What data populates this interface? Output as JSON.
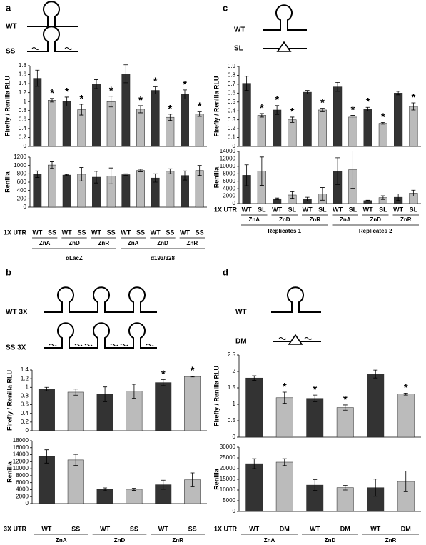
{
  "panels": [
    {
      "label": "a",
      "constructs": [
        "WT",
        "SS"
      ],
      "x_title": "1X UTR",
      "categories": [
        "WT",
        "SS",
        "WT",
        "SS",
        "WT",
        "SS",
        "WT",
        "SS",
        "WT",
        "SS",
        "WT",
        "SS"
      ],
      "groups": [
        "ZnA",
        "ZnD",
        "ZnR",
        "ZnA",
        "ZnD",
        "ZnR"
      ],
      "supergroups": [
        "αLacZ",
        "α193/328"
      ]
    },
    {
      "label": "b",
      "constructs": [
        "WT 3X",
        "SS 3X"
      ],
      "x_title": "3X UTR",
      "categories": [
        "WT",
        "SS",
        "WT",
        "SS",
        "WT",
        "SS"
      ],
      "groups": [
        "ZnA",
        "ZnD",
        "ZnR"
      ]
    },
    {
      "label": "c",
      "constructs": [
        "WT",
        "SL"
      ],
      "x_title": "1X UTR",
      "categories": [
        "WT",
        "SL",
        "WT",
        "SL",
        "WT",
        "SL",
        "WT",
        "SL",
        "WT",
        "SL",
        "WT",
        "SL"
      ],
      "groups": [
        "ZnA",
        "ZnD",
        "ZnR",
        "ZnA",
        "ZnD",
        "ZnR"
      ],
      "supergroups": [
        "Replicates 1",
        "Replicates 2"
      ]
    },
    {
      "label": "d",
      "constructs": [
        "WT",
        "DM"
      ],
      "x_title": "1X UTR",
      "categories": [
        "WT",
        "DM",
        "WT",
        "DM",
        "WT",
        "DM"
      ],
      "groups": [
        "ZnA",
        "ZnD",
        "ZnR"
      ]
    }
  ],
  "chart_data": [
    {
      "type": "bar",
      "ylabel": "Firefly / Renilla RLU",
      "values": [
        1.52,
        1.03,
        1.0,
        0.82,
        1.39,
        1.0,
        1.62,
        0.83,
        1.25,
        0.65,
        1.16,
        0.72
      ],
      "errors": [
        0.18,
        0.04,
        0.1,
        0.12,
        0.1,
        0.12,
        0.2,
        0.08,
        0.08,
        0.07,
        0.1,
        0.05
      ],
      "significance": [
        null,
        "*",
        "*",
        "*",
        null,
        "*",
        null,
        "*",
        "*",
        "*",
        "*",
        "*"
      ],
      "colors": [
        "#333333",
        "#bbbbbb",
        "#333333",
        "#bbbbbb",
        "#333333",
        "#bbbbbb",
        "#333333",
        "#bbbbbb",
        "#333333",
        "#bbbbbb",
        "#333333",
        "#bbbbbb"
      ],
      "ylim": [
        0,
        1.8
      ],
      "yticks": [
        0,
        0.2,
        0.4,
        0.6,
        0.8,
        1,
        1.2,
        1.4,
        1.6,
        1.8
      ]
    },
    {
      "type": "bar",
      "ylabel": "Renilla",
      "values": [
        790,
        1010,
        770,
        790,
        720,
        750,
        780,
        880,
        700,
        860,
        760,
        880
      ],
      "errors": [
        80,
        80,
        15,
        160,
        140,
        190,
        20,
        30,
        100,
        60,
        110,
        120
      ],
      "colors": [
        "#333333",
        "#bbbbbb",
        "#333333",
        "#bbbbbb",
        "#333333",
        "#bbbbbb",
        "#333333",
        "#bbbbbb",
        "#333333",
        "#bbbbbb",
        "#333333",
        "#bbbbbb"
      ],
      "ylim": [
        0,
        1200
      ],
      "yticks": [
        0,
        200,
        400,
        600,
        800,
        1000,
        1200
      ]
    },
    {
      "type": "bar",
      "ylabel": "Firefly / Renilla RLU",
      "values": [
        0.96,
        0.89,
        0.84,
        0.91,
        1.11,
        1.25
      ],
      "errors": [
        0.04,
        0.07,
        0.17,
        0.16,
        0.07,
        0.01
      ],
      "significance": [
        null,
        null,
        null,
        null,
        "*",
        "*"
      ],
      "colors": [
        "#333333",
        "#bbbbbb",
        "#333333",
        "#bbbbbb",
        "#333333",
        "#bbbbbb"
      ],
      "ylim": [
        0,
        1.4
      ],
      "yticks": [
        0,
        0.2,
        0.4,
        0.6,
        0.8,
        1,
        1.2,
        1.4
      ]
    },
    {
      "type": "bar",
      "ylabel": "Renilla",
      "values": [
        13500,
        12500,
        4100,
        4100,
        5400,
        6800
      ],
      "errors": [
        1900,
        1600,
        400,
        300,
        1300,
        2000
      ],
      "colors": [
        "#333333",
        "#bbbbbb",
        "#333333",
        "#bbbbbb",
        "#333333",
        "#bbbbbb"
      ],
      "ylim": [
        0,
        18000
      ],
      "yticks": [
        0,
        2000,
        4000,
        6000,
        8000,
        10000,
        12000,
        14000,
        16000,
        18000
      ]
    },
    {
      "type": "bar",
      "ylabel": "Firefly / Renilla RLU",
      "values": [
        0.71,
        0.35,
        0.41,
        0.3,
        0.61,
        0.41,
        0.67,
        0.33,
        0.42,
        0.26,
        0.6,
        0.45
      ],
      "errors": [
        0.08,
        0.02,
        0.05,
        0.03,
        0.02,
        0.02,
        0.05,
        0.02,
        0.02,
        0.01,
        0.02,
        0.04
      ],
      "significance": [
        null,
        "*",
        "*",
        "*",
        null,
        "*",
        null,
        "*",
        "*",
        "*",
        null,
        "*"
      ],
      "colors": [
        "#333333",
        "#bbbbbb",
        "#333333",
        "#bbbbbb",
        "#333333",
        "#bbbbbb",
        "#333333",
        "#bbbbbb",
        "#333333",
        "#bbbbbb",
        "#333333",
        "#bbbbbb"
      ],
      "ylim": [
        0,
        0.9
      ],
      "yticks": [
        0,
        0.1,
        0.2,
        0.3,
        0.4,
        0.5,
        0.6,
        0.7,
        0.8,
        0.9
      ]
    },
    {
      "type": "bar",
      "ylabel": "Renilla",
      "values": [
        7600,
        8700,
        1300,
        2300,
        1200,
        2600,
        8700,
        9100,
        800,
        1600,
        1700,
        2800
      ],
      "errors": [
        2800,
        3800,
        200,
        900,
        500,
        1700,
        3600,
        5000,
        100,
        500,
        900,
        800
      ],
      "colors": [
        "#333333",
        "#bbbbbb",
        "#333333",
        "#bbbbbb",
        "#333333",
        "#bbbbbb",
        "#333333",
        "#bbbbbb",
        "#333333",
        "#bbbbbb",
        "#333333",
        "#bbbbbb"
      ],
      "ylim": [
        0,
        14000
      ],
      "yticks": [
        0,
        2000,
        4000,
        6000,
        8000,
        10000,
        12000,
        14000
      ]
    },
    {
      "type": "bar",
      "ylabel": "Firefly / Renilla RLU",
      "values": [
        1.8,
        1.2,
        1.18,
        0.9,
        1.92,
        1.31
      ],
      "errors": [
        0.07,
        0.17,
        0.1,
        0.08,
        0.12,
        0.03
      ],
      "significance": [
        null,
        "*",
        "*",
        "*",
        null,
        "*"
      ],
      "colors": [
        "#333333",
        "#bbbbbb",
        "#333333",
        "#bbbbbb",
        "#333333",
        "#bbbbbb"
      ],
      "ylim": [
        0,
        2.5
      ],
      "yticks": [
        0,
        0.5,
        1,
        1.5,
        2,
        2.5
      ]
    },
    {
      "type": "bar",
      "ylabel": "Renilla",
      "values": [
        22300,
        23000,
        12300,
        11100,
        11100,
        14000
      ],
      "errors": [
        2300,
        1600,
        2500,
        1100,
        4000,
        4800
      ],
      "colors": [
        "#333333",
        "#bbbbbb",
        "#333333",
        "#bbbbbb",
        "#333333",
        "#bbbbbb"
      ],
      "ylim": [
        0,
        30000
      ],
      "yticks": [
        0,
        5000,
        10000,
        15000,
        20000,
        25000,
        30000
      ]
    }
  ]
}
